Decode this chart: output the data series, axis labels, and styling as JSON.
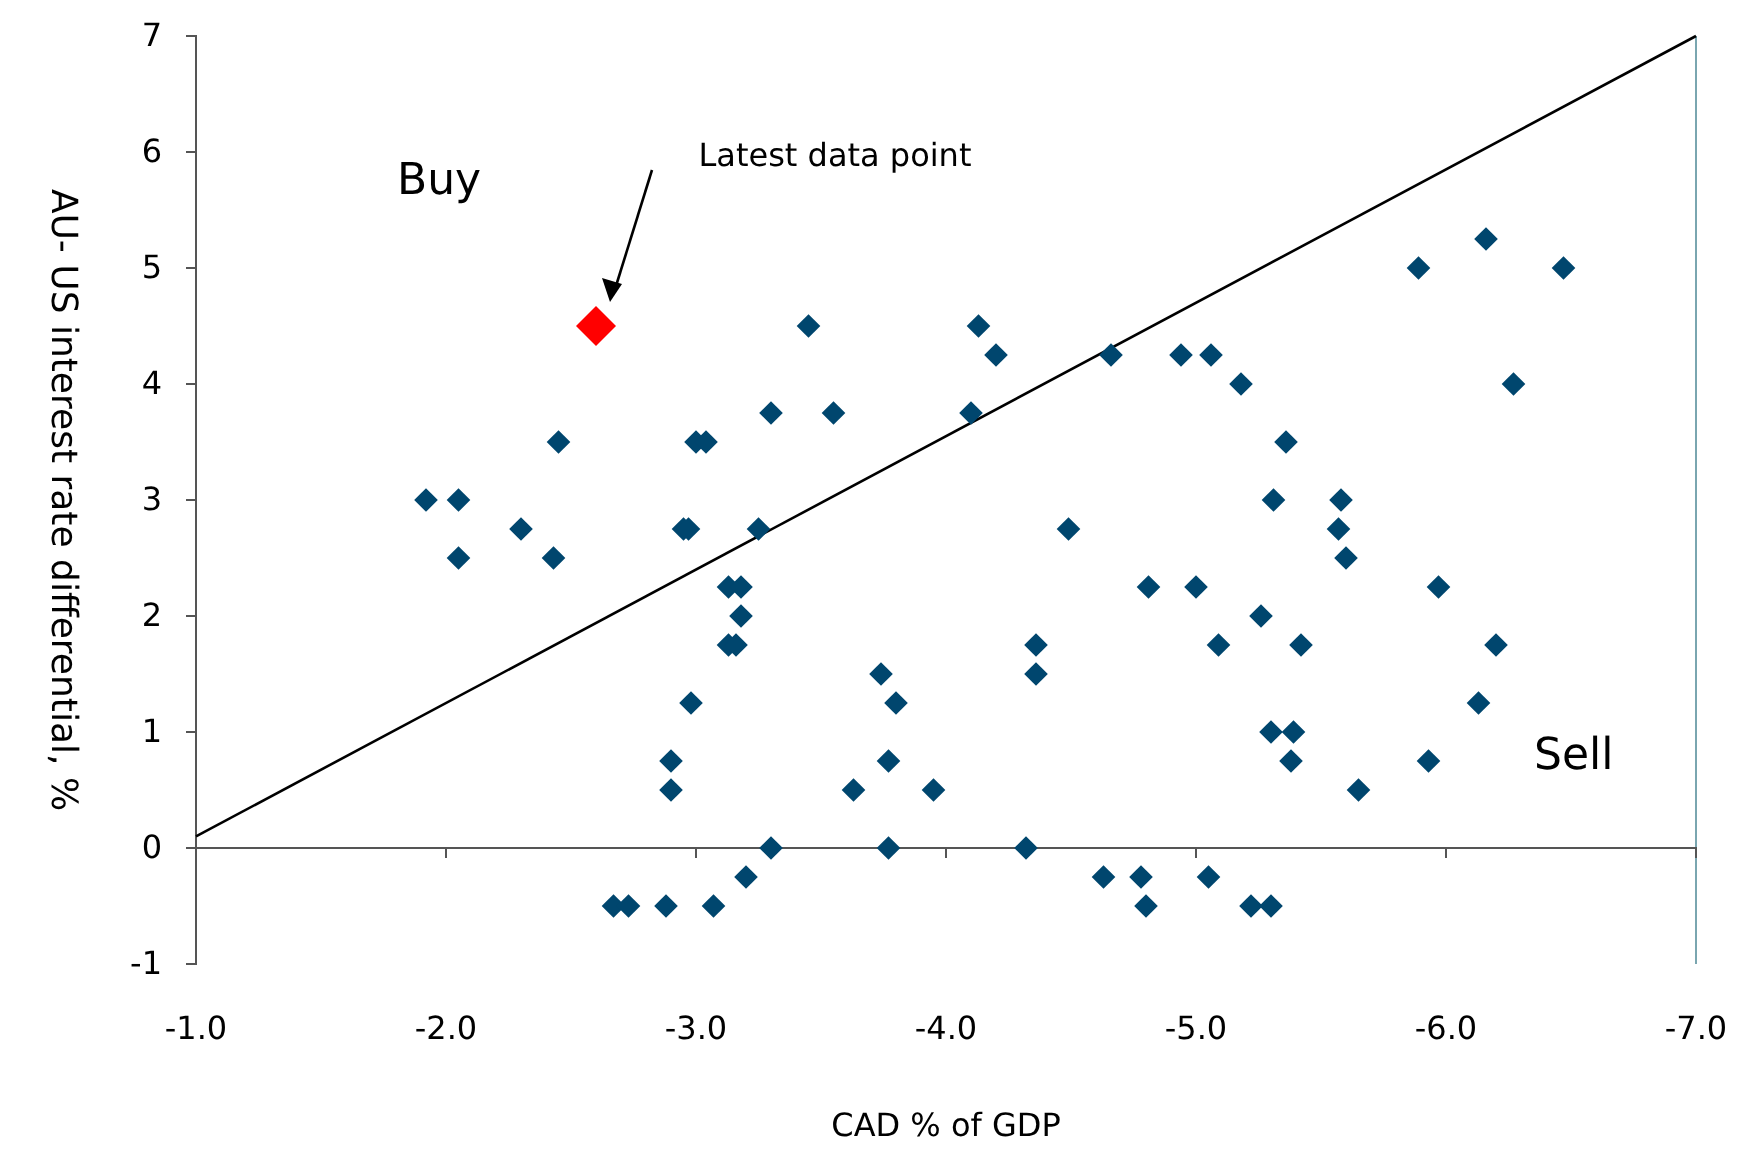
{
  "chart_data": {
    "type": "scatter",
    "xlabel": "CAD % of GDP",
    "ylabel": "AU- US interest rate differential, %",
    "xlim": [
      -1,
      -7
    ],
    "ylim": [
      -1,
      7
    ],
    "xticks": [
      {
        "value": -1,
        "label": "-1.0"
      },
      {
        "value": -2,
        "label": "-2.0"
      },
      {
        "value": -3,
        "label": "-3.0"
      },
      {
        "value": -4,
        "label": "-4.0"
      },
      {
        "value": -5,
        "label": "-5.0"
      },
      {
        "value": -6,
        "label": "-6.0"
      },
      {
        "value": -7,
        "label": "-7.0"
      }
    ],
    "yticks": [
      -1,
      0,
      1,
      2,
      3,
      4,
      5,
      6,
      7
    ],
    "marker": "diamond",
    "grid": false,
    "annotations": [
      "Buy",
      "Sell",
      "Latest data point"
    ],
    "series": [
      {
        "type": "line",
        "marker": "none",
        "color": "#000000",
        "x": [
          -1,
          -7
        ],
        "values": [
          0.1,
          7
        ]
      },
      {
        "color": "#00466e",
        "x": [
          -1.92,
          -2.05,
          -2.05,
          -2.3,
          -2.45,
          -2.43,
          -2.9,
          -2.9,
          -2.98,
          -2.95,
          -2.97,
          -3.0,
          -3.04,
          -3.25,
          -3.13,
          -3.18,
          -3.18,
          -3.13,
          -3.16,
          -3.3,
          -3.45,
          -3.55,
          -3.2,
          -3.3,
          -2.67,
          -2.73,
          -2.88,
          -3.07,
          -3.74,
          -3.8,
          -3.77,
          -3.63,
          -3.77,
          -4.1,
          -4.13,
          -4.2,
          -3.95,
          -4.49,
          -4.36,
          -4.36,
          -4.32,
          -4.66,
          -4.94,
          -5.06,
          -5.18,
          -4.81,
          -5.0,
          -5.09,
          -5.26,
          -5.42,
          -5.36,
          -5.31,
          -5.3,
          -5.39,
          -5.38,
          -4.63,
          -4.78,
          -4.8,
          -5.05,
          -5.22,
          -5.3,
          -5.58,
          -5.57,
          -5.6,
          -5.97,
          -6.2,
          -6.13,
          -5.93,
          -5.65,
          -5.89,
          -6.16,
          -6.47,
          -6.27
        ],
        "values": [
          3,
          3,
          2.5,
          2.75,
          3.5,
          2.5,
          0.75,
          0.5,
          1.25,
          2.75,
          2.75,
          3.5,
          3.5,
          2.75,
          2.25,
          2.25,
          2,
          1.75,
          1.75,
          3.75,
          4.5,
          3.75,
          -0.25,
          0,
          -0.5,
          -0.5,
          -0.5,
          -0.5,
          1.5,
          1.25,
          0.75,
          0.5,
          0,
          3.75,
          4.5,
          4.25,
          0.5,
          2.75,
          1.75,
          1.5,
          0,
          4.25,
          4.25,
          4.25,
          4,
          2.25,
          2.25,
          1.75,
          2,
          1.75,
          3.5,
          3,
          1,
          1,
          0.75,
          -0.25,
          -0.25,
          -0.5,
          -0.25,
          -0.5,
          -0.5,
          3,
          2.75,
          2.5,
          2.25,
          1.75,
          1.25,
          0.75,
          0.5,
          5,
          5.25,
          5,
          4
        ]
      },
      {
        "color": "#ff0000",
        "marker": "diamond",
        "x": [
          -2.6
        ],
        "values": [
          4.5
        ]
      }
    ]
  }
}
